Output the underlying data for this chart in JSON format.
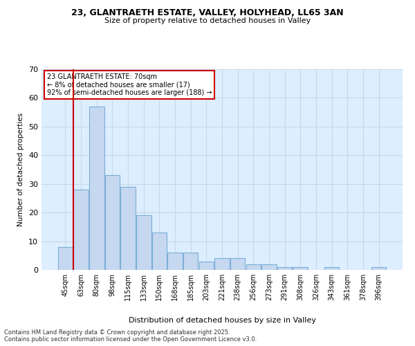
{
  "title1": "23, GLANTRAETH ESTATE, VALLEY, HOLYHEAD, LL65 3AN",
  "title2": "Size of property relative to detached houses in Valley",
  "xlabel": "Distribution of detached houses by size in Valley",
  "ylabel": "Number of detached properties",
  "categories": [
    "45sqm",
    "63sqm",
    "80sqm",
    "98sqm",
    "115sqm",
    "133sqm",
    "150sqm",
    "168sqm",
    "185sqm",
    "203sqm",
    "221sqm",
    "238sqm",
    "256sqm",
    "273sqm",
    "291sqm",
    "308sqm",
    "326sqm",
    "343sqm",
    "361sqm",
    "378sqm",
    "396sqm"
  ],
  "values": [
    8,
    28,
    57,
    33,
    29,
    19,
    13,
    6,
    6,
    3,
    4,
    4,
    2,
    2,
    1,
    1,
    0,
    1,
    0,
    0,
    1
  ],
  "bar_color": "#c5d8f0",
  "bar_edge_color": "#7aaed6",
  "annotation_title": "23 GLANTRAETH ESTATE: 70sqm",
  "annotation_line1": "← 8% of detached houses are smaller (17)",
  "annotation_line2": "92% of semi-detached houses are larger (188) →",
  "annotation_box_color": "#ffffff",
  "annotation_box_edge": "#cc0000",
  "red_line_color": "#cc0000",
  "ylim": [
    0,
    70
  ],
  "yticks": [
    0,
    10,
    20,
    30,
    40,
    50,
    60,
    70
  ],
  "grid_color": "#c8d8e8",
  "background_color": "#ddeeff",
  "footnote1": "Contains HM Land Registry data © Crown copyright and database right 2025.",
  "footnote2": "Contains public sector information licensed under the Open Government Licence v3.0."
}
